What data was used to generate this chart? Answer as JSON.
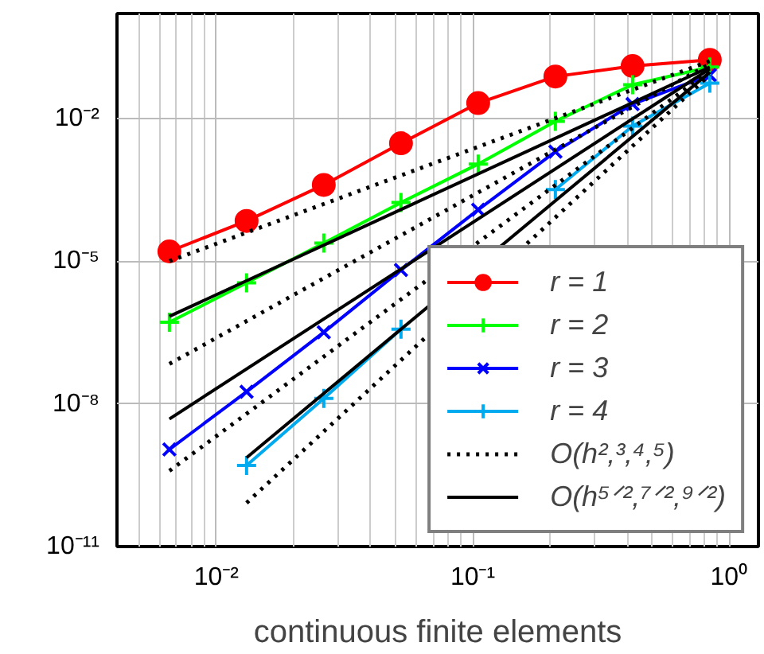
{
  "chart_data": {
    "type": "line",
    "xlabel": "continuous finite elements",
    "log": "xy",
    "grid": true,
    "legend": "bottom right",
    "xlim": [
      0.0041,
      1.3
    ],
    "ylim": [
      1e-11,
      1.6
    ],
    "xticks": [
      {
        "value": 0.01,
        "label": "10⁻²"
      },
      {
        "value": 0.1,
        "label": "10⁻¹"
      },
      {
        "value": 1,
        "label": "10⁰"
      }
    ],
    "yticks": [
      {
        "value": 1e-11,
        "label": "10⁻¹¹"
      },
      {
        "value": 1e-08,
        "label": "10⁻⁸"
      },
      {
        "value": 1e-05,
        "label": "10⁻⁵"
      },
      {
        "value": 0.01,
        "label": "10⁻²"
      }
    ],
    "series": [
      {
        "name": "r = 1",
        "color": "#ff0000",
        "marker": "circle",
        "line_style": "solid",
        "x": [
          0.84,
          0.42,
          0.21,
          0.105,
          0.0525,
          0.02625,
          0.013125,
          0.0065625
        ],
        "values": [
          0.17,
          0.126,
          0.076,
          0.021,
          0.003,
          0.0004,
          7e-05,
          1.6e-05
        ]
      },
      {
        "name": "r = 2",
        "color": "#00ff00",
        "marker": "cross",
        "line_style": "solid",
        "x": [
          0.84,
          0.42,
          0.21,
          0.105,
          0.0525,
          0.02625,
          0.013125,
          0.0065625
        ],
        "values": [
          0.12,
          0.051,
          0.0087,
          0.0011,
          0.00017,
          2.4e-05,
          3.5e-06,
          5.2e-07
        ]
      },
      {
        "name": "r = 3",
        "color": "#0000ff",
        "marker": "x",
        "line_style": "solid",
        "x": [
          0.84,
          0.42,
          0.21,
          0.105,
          0.0525,
          0.02625,
          0.013125,
          0.0065625
        ],
        "values": [
          0.081,
          0.02,
          0.002,
          0.00012,
          6.5e-06,
          3.2e-07,
          1.8e-08,
          1.1e-09
        ]
      },
      {
        "name": "r = 4",
        "color": "#00aaee",
        "marker": "cross",
        "line_style": "solid",
        "x": [
          0.84,
          0.42,
          0.21,
          0.105,
          0.0525,
          0.02625,
          0.013125
        ],
        "values": [
          0.055,
          0.0069,
          0.00032,
          null,
          3.7e-07,
          1.3e-08,
          5.1e-10
        ]
      },
      {
        "name": "O(h²,³,⁴,⁵)",
        "color": "#000000",
        "marker": "none",
        "line_style": "dotted",
        "x": [
          0.0065625,
          0.84
        ],
        "values": [
          1e-05,
          0.16
        ]
      },
      {
        "color": "#000000",
        "marker": "none",
        "line_style": "dotted",
        "x": [
          0.0065625,
          0.84
        ],
        "values": [
          6.9e-08,
          0.14
        ]
      },
      {
        "color": "#000000",
        "marker": "none",
        "line_style": "dotted",
        "x": [
          0.0065625,
          0.84
        ],
        "values": [
          3.9e-10,
          0.1
        ]
      },
      {
        "color": "#000000",
        "marker": "none",
        "line_style": "dotted",
        "x": [
          0.013125,
          0.84
        ],
        "values": [
          8.3e-11,
          0.083
        ]
      },
      {
        "name": "O(h⁵ᐟ²,⁷ᐟ²,⁹ᐟ²)",
        "color": "#000000",
        "marker": "none",
        "line_style": "solid",
        "x": [
          0.0065625,
          0.84
        ],
        "values": [
          6.9e-07,
          0.12
        ]
      },
      {
        "color": "#000000",
        "marker": "none",
        "line_style": "solid",
        "x": [
          0.0065625,
          0.84
        ],
        "values": [
          4.8e-09,
          0.11
        ]
      },
      {
        "color": "#000000",
        "marker": "none",
        "line_style": "solid",
        "x": [
          0.013125,
          0.84
        ],
        "values": [
          7.4e-10,
          0.093
        ]
      }
    ]
  }
}
